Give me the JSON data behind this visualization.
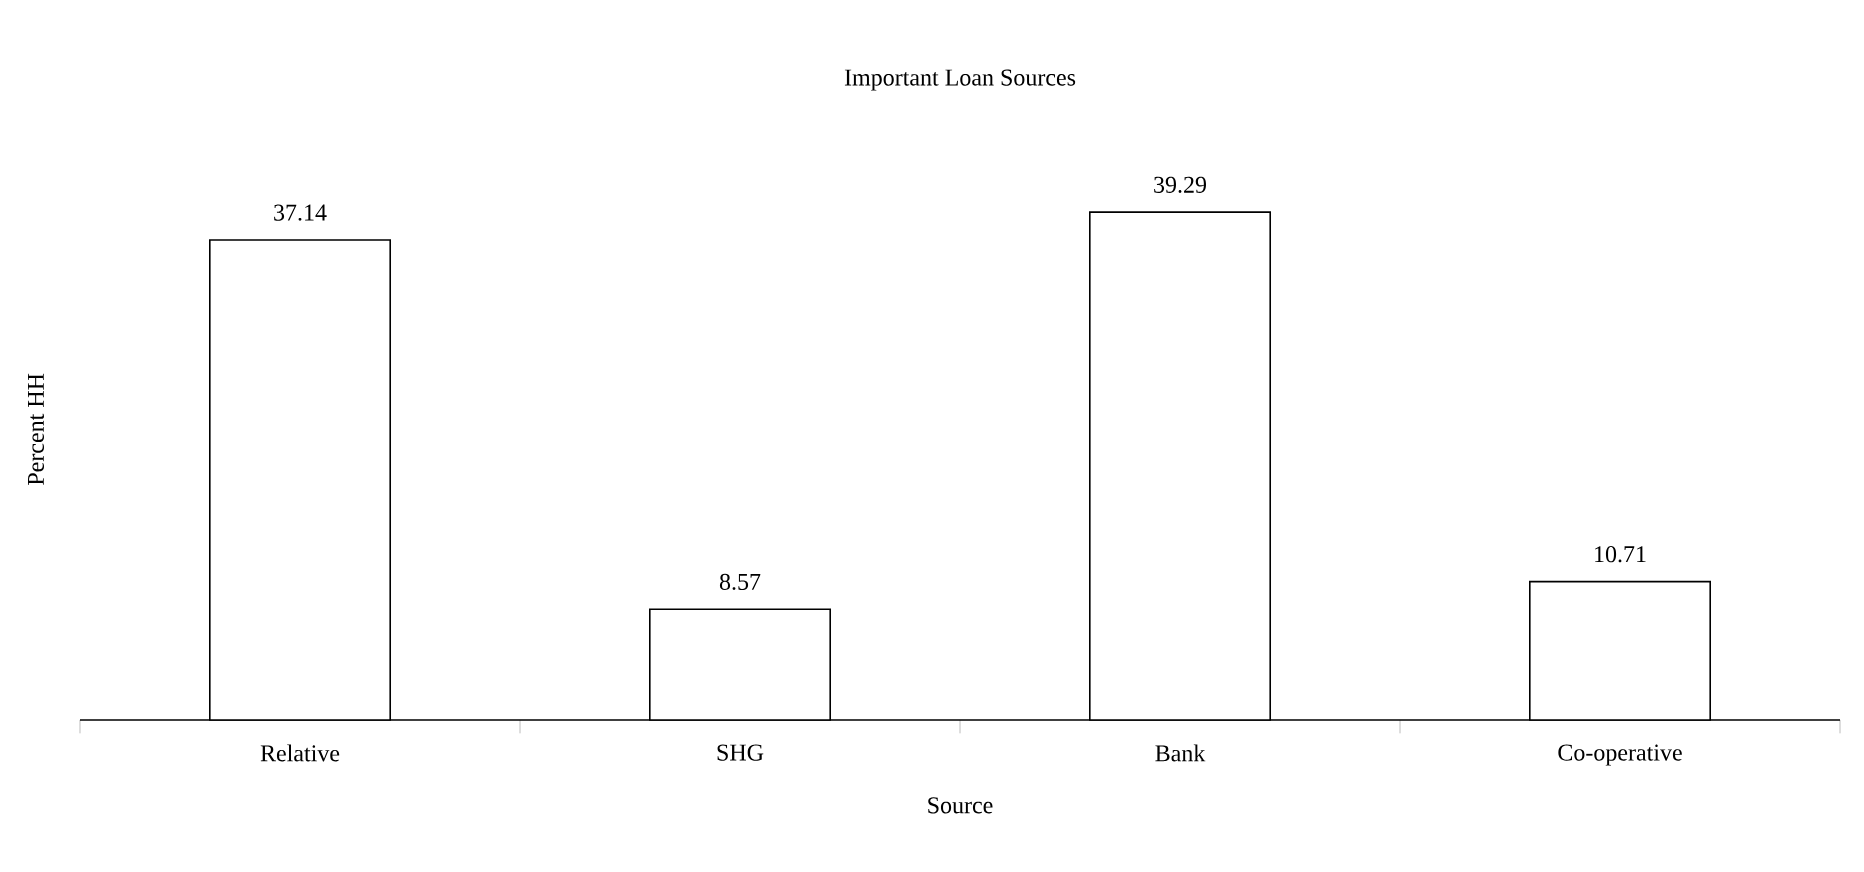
{
  "chart_data": {
    "type": "bar",
    "title": "Important Loan Sources",
    "xlabel": "Source",
    "ylabel": "Percent HH",
    "categories": [
      "Relative",
      "SHG",
      "Bank",
      "Co-operative"
    ],
    "values": [
      37.14,
      8.57,
      39.29,
      10.71
    ],
    "color": "#ffffff",
    "data_labels": true,
    "tick_labels": "x",
    "grid": false
  }
}
